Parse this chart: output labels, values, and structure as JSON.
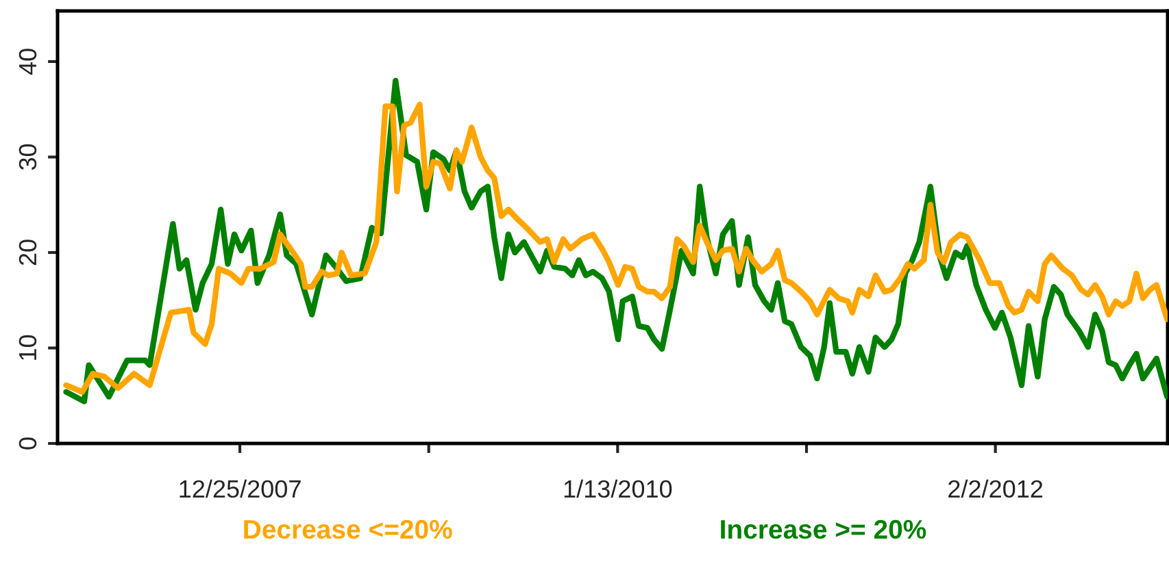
{
  "chart_data": {
    "type": "line",
    "legend": "bottom",
    "grid": false,
    "line_style": "solid",
    "marker": "none",
    "xlim": [
      "2006-12-28",
      "2013-01-09"
    ],
    "ylim": [
      0,
      45.3
    ],
    "yticks": [
      0,
      10,
      20,
      30,
      40
    ],
    "xticks": [
      {
        "value": "2007-12-25",
        "label": "12/25/2007"
      },
      {
        "value": "2009-01-03",
        "label": null
      },
      {
        "value": "2010-01-13",
        "label": "1/13/2010"
      },
      {
        "value": "2011-01-23",
        "label": null
      },
      {
        "value": "2012-02-02",
        "label": "2/2/2012"
      }
    ],
    "series": [
      {
        "name": "Decrease <=20%",
        "color": "#ffa500",
        "x": [
          "2007-01-14",
          "2007-02-15",
          "2007-03-08",
          "2007-03-31",
          "2007-04-27",
          "2007-05-29",
          "2007-06-29",
          "2007-08-10",
          "2007-09-15",
          "2007-09-24",
          "2007-10-17",
          "2007-10-30",
          "2007-11-13",
          "2007-12-06",
          "2007-12-28",
          "2008-01-11",
          "2008-02-03",
          "2008-03-01",
          "2008-03-14",
          "2008-04-06",
          "2008-04-24",
          "2008-05-03",
          "2008-05-16",
          "2008-06-04",
          "2008-06-18",
          "2008-07-05",
          "2008-07-14",
          "2008-08-02",
          "2008-08-29",
          "2008-09-21",
          "2008-10-09",
          "2008-10-23",
          "2008-11-01",
          "2008-11-15",
          "2008-11-28",
          "2008-12-16",
          "2008-12-29",
          "2009-01-12",
          "2009-01-26",
          "2009-02-14",
          "2009-02-27",
          "2009-03-10",
          "2009-03-29",
          "2009-04-16",
          "2009-04-30",
          "2009-05-13",
          "2009-05-27",
          "2009-06-10",
          "2009-06-28",
          "2009-07-16",
          "2009-08-12",
          "2009-08-26",
          "2009-09-09",
          "2009-09-27",
          "2009-10-11",
          "2009-11-03",
          "2009-11-25",
          "2009-12-13",
          "2009-12-27",
          "2010-01-14",
          "2010-01-28",
          "2010-02-11",
          "2010-02-24",
          "2010-03-13",
          "2010-03-26",
          "2010-04-11",
          "2010-04-27",
          "2010-05-11",
          "2010-05-24",
          "2010-06-12",
          "2010-06-25",
          "2010-07-09",
          "2010-07-27",
          "2010-08-10",
          "2010-08-28",
          "2010-09-11",
          "2010-09-25",
          "2010-10-08",
          "2010-10-26",
          "2010-11-14",
          "2010-11-27",
          "2010-12-11",
          "2010-12-24",
          "2011-01-12",
          "2011-01-30",
          "2011-02-13",
          "2011-03-10",
          "2011-03-28",
          "2011-04-15",
          "2011-04-24",
          "2011-05-08",
          "2011-05-26",
          "2011-06-09",
          "2011-06-27",
          "2011-07-11",
          "2011-07-28",
          "2011-08-12",
          "2011-08-25",
          "2011-09-13",
          "2011-09-26",
          "2011-10-10",
          "2011-10-23",
          "2011-11-06",
          "2011-11-24",
          "2011-12-08",
          "2012-01-02",
          "2012-01-22",
          "2012-02-10",
          "2012-02-28",
          "2012-03-11",
          "2012-03-25",
          "2012-04-08",
          "2012-04-26",
          "2012-05-10",
          "2012-05-23",
          "2012-06-15",
          "2012-07-03",
          "2012-07-21",
          "2012-08-04",
          "2012-08-18",
          "2012-09-01",
          "2012-09-14",
          "2012-09-28",
          "2012-10-11",
          "2012-10-25",
          "2012-11-08",
          "2012-11-21",
          "2012-12-05",
          "2012-12-18",
          "2013-01-08"
        ],
        "values": [
          6.1,
          5.4,
          7.3,
          7.0,
          5.8,
          7.3,
          6.1,
          13.7,
          14,
          11.6,
          10.4,
          12.5,
          18.3,
          17.8,
          16.8,
          18.3,
          18.3,
          19,
          21.9,
          20.2,
          18.8,
          16.4,
          16.4,
          18,
          17.6,
          17.8,
          20,
          17.6,
          17.8,
          21.1,
          35.3,
          35.3,
          26.4,
          33.3,
          33.6,
          35.5,
          26.9,
          29.5,
          29.3,
          26.7,
          30.7,
          29.5,
          33.1,
          30,
          28.6,
          27.8,
          23.8,
          24.5,
          23.5,
          22.6,
          21.1,
          21.4,
          19,
          21.4,
          20.4,
          21.4,
          21.9,
          20.4,
          19,
          16.6,
          18.5,
          18.3,
          16.4,
          15.9,
          15.9,
          15.2,
          16.4,
          21.4,
          20.7,
          19,
          22.8,
          21.1,
          19.2,
          20.2,
          20.4,
          18,
          20.4,
          19.2,
          18,
          18.8,
          20.2,
          17.1,
          16.8,
          15.9,
          14.9,
          13.5,
          16.1,
          15.2,
          14.9,
          13.7,
          16.1,
          15.4,
          17.6,
          15.9,
          16.1,
          17.3,
          18.8,
          18.3,
          19.2,
          25,
          20,
          19,
          21.1,
          21.9,
          21.6,
          19.2,
          16.8,
          16.8,
          14.4,
          13.7,
          14,
          15.9,
          14.9,
          18.8,
          19.7,
          18.3,
          17.6,
          16.1,
          15.6,
          16.6,
          15.4,
          13.5,
          14.9,
          14.4,
          14.9,
          17.8,
          15.2,
          16.1,
          16.6,
          13
        ]
      },
      {
        "name": "Increase >= 20%",
        "color": "#008000",
        "x": [
          "2007-01-14",
          "2007-02-19",
          "2007-02-28",
          "2007-04-09",
          "2007-05-15",
          "2007-06-20",
          "2007-06-29",
          "2007-08-14",
          "2007-08-27",
          "2007-09-10",
          "2007-09-28",
          "2007-10-12",
          "2007-10-30",
          "2007-11-17",
          "2007-12-01",
          "2007-12-14",
          "2007-12-28",
          "2008-01-16",
          "2008-01-29",
          "2008-02-21",
          "2008-03-14",
          "2008-03-27",
          "2008-04-15",
          "2008-05-16",
          "2008-06-13",
          "2008-07-05",
          "2008-07-23",
          "2008-08-20",
          "2008-09-12",
          "2008-09-30",
          "2008-10-29",
          "2008-11-19",
          "2008-12-11",
          "2008-12-29",
          "2009-01-12",
          "2009-02-01",
          "2009-02-14",
          "2009-02-27",
          "2009-03-15",
          "2009-03-29",
          "2009-04-16",
          "2009-04-30",
          "2009-05-13",
          "2009-05-27",
          "2009-06-10",
          "2009-06-23",
          "2009-07-11",
          "2009-08-12",
          "2009-08-26",
          "2009-09-09",
          "2009-10-01",
          "2009-10-15",
          "2009-10-28",
          "2009-11-11",
          "2009-11-25",
          "2009-12-13",
          "2009-12-27",
          "2010-01-14",
          "2010-01-23",
          "2010-02-11",
          "2010-02-24",
          "2010-03-13",
          "2010-03-26",
          "2010-04-11",
          "2010-04-27",
          "2010-05-20",
          "2010-06-12",
          "2010-06-25",
          "2010-07-09",
          "2010-07-27",
          "2010-08-10",
          "2010-08-28",
          "2010-09-11",
          "2010-09-29",
          "2010-10-13",
          "2010-10-31",
          "2010-11-14",
          "2010-11-27",
          "2010-12-11",
          "2010-12-24",
          "2011-01-12",
          "2011-01-30",
          "2011-02-13",
          "2011-02-27",
          "2011-03-10",
          "2011-03-23",
          "2011-04-11",
          "2011-04-24",
          "2011-05-08",
          "2011-05-26",
          "2011-06-09",
          "2011-06-27",
          "2011-07-11",
          "2011-07-24",
          "2011-08-07",
          "2011-08-21",
          "2011-09-04",
          "2011-09-26",
          "2011-10-14",
          "2011-10-28",
          "2011-11-15",
          "2011-11-29",
          "2011-12-08",
          "2011-12-26",
          "2012-01-14",
          "2012-02-01",
          "2012-02-15",
          "2012-03-03",
          "2012-03-25",
          "2012-04-08",
          "2012-04-26",
          "2012-05-10",
          "2012-05-28",
          "2012-06-11",
          "2012-06-24",
          "2012-07-17",
          "2012-08-04",
          "2012-08-18",
          "2012-09-01",
          "2012-09-14",
          "2012-09-28",
          "2012-10-11",
          "2012-10-25",
          "2012-11-08",
          "2012-11-21",
          "2012-12-18",
          "2013-01-08"
        ],
        "values": [
          5.4,
          4.4,
          8.2,
          4.9,
          8.7,
          8.7,
          8.2,
          23,
          18.3,
          19.2,
          14,
          16.8,
          18.8,
          24.5,
          18.8,
          21.9,
          20.2,
          22.3,
          16.8,
          19.7,
          24,
          19.7,
          18.8,
          13.5,
          19.7,
          18.3,
          17,
          17.3,
          22.6,
          22,
          38,
          30.2,
          29.5,
          24.5,
          30.5,
          29.8,
          28.6,
          30.7,
          26.4,
          24.7,
          26.4,
          26.9,
          21.6,
          17.3,
          21.9,
          20,
          21.1,
          18,
          20.2,
          18.5,
          18.3,
          17.6,
          19.2,
          17.6,
          18,
          17.3,
          15.9,
          10.9,
          14.9,
          15.4,
          12.3,
          12.1,
          10.9,
          9.9,
          14,
          20.2,
          17.8,
          26.9,
          21.6,
          17.8,
          21.9,
          23.3,
          16.6,
          21.6,
          16.6,
          14.9,
          14,
          16.8,
          12.8,
          12.5,
          10.1,
          9.2,
          6.8,
          10.1,
          14.7,
          9.6,
          9.6,
          7.3,
          10.1,
          7.5,
          11.1,
          10.1,
          10.9,
          12.5,
          17.8,
          19.2,
          21.1,
          26.9,
          19.7,
          17.3,
          20,
          19.5,
          20.7,
          16.6,
          14,
          12.1,
          13.7,
          11.1,
          6.1,
          12.3,
          7,
          13,
          16.4,
          15.6,
          13.5,
          11.8,
          10.1,
          13.5,
          11.8,
          8.5,
          8.2,
          6.8,
          8.2,
          9.4,
          6.8,
          8.9,
          4.9
        ]
      }
    ]
  }
}
